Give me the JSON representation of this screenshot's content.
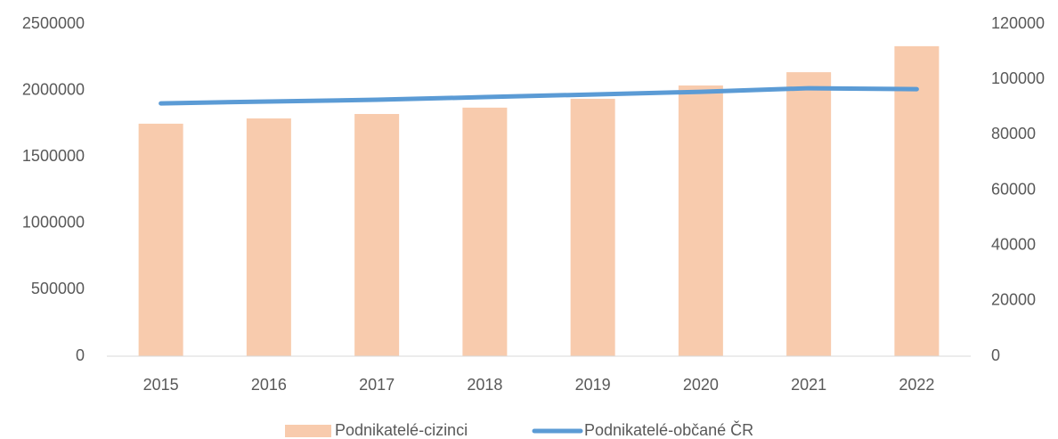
{
  "chart_data": {
    "type": "bar_line",
    "categories": [
      "2015",
      "2016",
      "2017",
      "2018",
      "2019",
      "2020",
      "2021",
      "2022"
    ],
    "series": [
      {
        "name": "Podnikatelé-cizinci",
        "type": "bar",
        "axis": "y2",
        "color": "#f8cbad",
        "values": [
          84000,
          85900,
          87500,
          89800,
          93000,
          97800,
          102600,
          112000
        ]
      },
      {
        "name": "Podnikatelé-občané ČR",
        "type": "line",
        "axis": "y",
        "color": "#5b9bd5",
        "values": [
          1903000,
          1917000,
          1930000,
          1950000,
          1970000,
          1990000,
          2017000,
          2010000
        ]
      }
    ],
    "ylim": [
      0,
      2500000
    ],
    "yticks": [
      0,
      500000,
      1000000,
      1500000,
      2000000,
      2500000
    ],
    "y2lim": [
      0,
      120000
    ],
    "y2ticks": [
      0,
      20000,
      40000,
      60000,
      80000,
      100000,
      120000
    ],
    "grid": false,
    "legend": "bottom"
  }
}
